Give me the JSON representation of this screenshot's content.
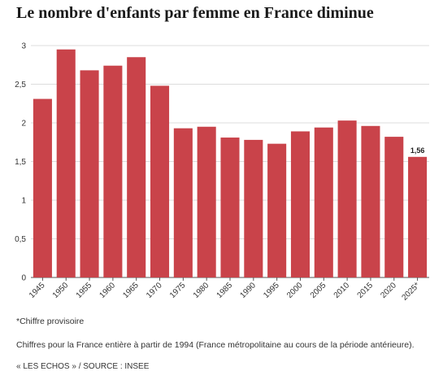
{
  "chart_data": {
    "type": "bar",
    "title": "Le nombre d'enfants par femme en France diminue",
    "categories": [
      "1945",
      "1950",
      "1955",
      "1960",
      "1965",
      "1970",
      "1975",
      "1980",
      "1985",
      "1990",
      "1995",
      "2000",
      "2005",
      "2010",
      "2015",
      "2020",
      "2025*"
    ],
    "values": [
      2.31,
      2.95,
      2.68,
      2.74,
      2.85,
      2.48,
      1.93,
      1.95,
      1.81,
      1.78,
      1.73,
      1.89,
      1.94,
      2.03,
      1.96,
      1.82,
      1.56
    ],
    "yticks": [
      "0",
      "0,5",
      "1",
      "1,5",
      "2",
      "2,5",
      "3"
    ],
    "ylim": [
      0,
      3
    ],
    "grid": true,
    "bar_color": "#c9434a",
    "data_labels": [
      {
        "index": 16,
        "text": "1,56"
      }
    ],
    "xlabel": "",
    "ylabel": ""
  },
  "notes": {
    "provisional": "*Chiffre provisoire",
    "scope": "Chiffres pour la France entière à partir de 1994 (France métropolitaine au cours de la période antérieure).",
    "source": "« LES ECHOS » / SOURCE : INSEE"
  }
}
